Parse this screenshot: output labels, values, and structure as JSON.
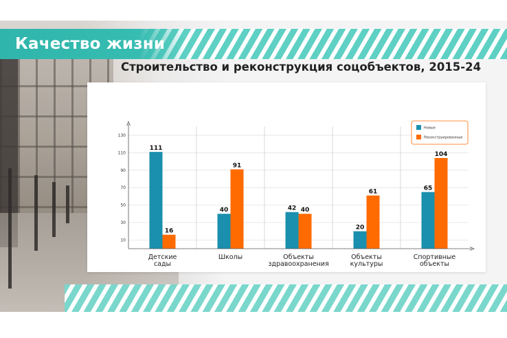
{
  "header": {
    "title": "Качество жизни"
  },
  "colors": {
    "accent": "#2fb5ab",
    "new": "#1b8fae",
    "reconstructed": "#ff6b00"
  },
  "chart_data": {
    "type": "bar",
    "title": "Строительство и реконструкция соцобъектов, 2015-24",
    "xlabel": "",
    "ylabel": "",
    "ylim": [
      0,
      130
    ],
    "yticks": [
      10,
      30,
      50,
      70,
      90,
      110,
      130
    ],
    "grid": true,
    "legend_position": "top-right",
    "categories": [
      [
        "Детские",
        "сады"
      ],
      [
        "Школы"
      ],
      [
        "Объекты",
        "здравоохранения"
      ],
      [
        "Объекты",
        "культуры"
      ],
      [
        "Спортивные",
        "объекты"
      ]
    ],
    "series": [
      {
        "name": "Новые",
        "values": [
          111,
          40,
          42,
          20,
          65
        ]
      },
      {
        "name": "Реконструированные",
        "values": [
          16,
          91,
          40,
          61,
          104
        ]
      }
    ]
  }
}
